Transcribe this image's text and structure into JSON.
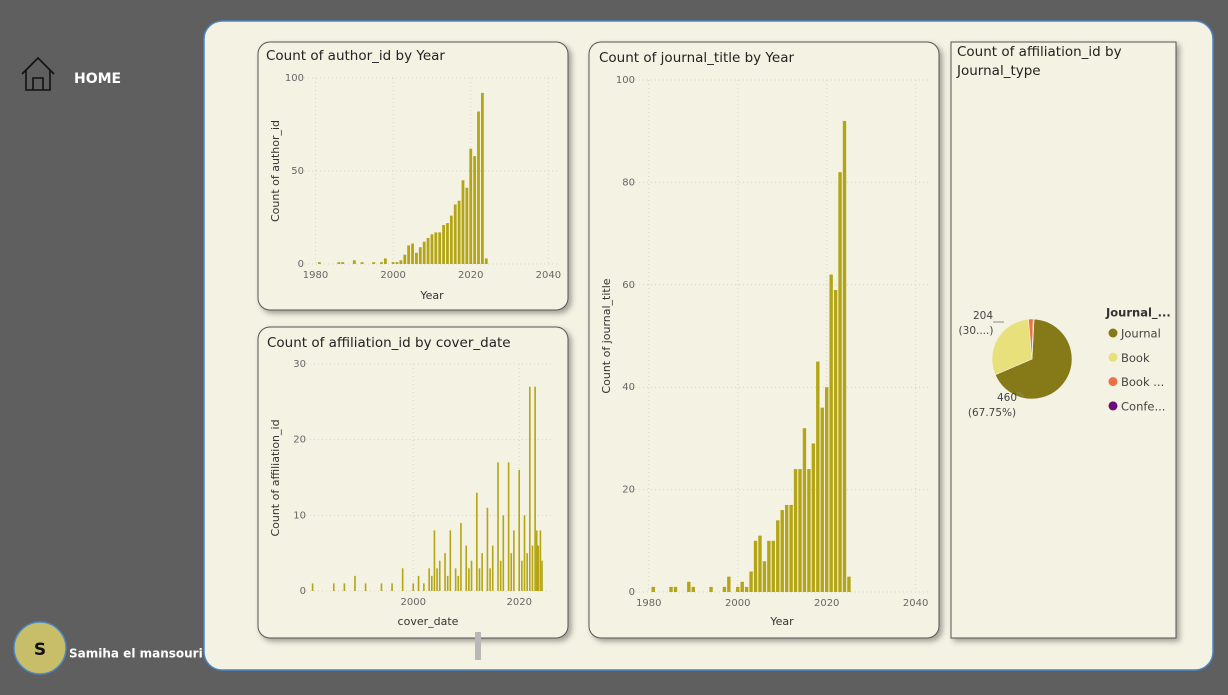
{
  "nav": {
    "home": "HOME",
    "avatar": "S",
    "user": "Samiha el mansouri"
  },
  "chart_data": [
    {
      "type": "bar",
      "title": "Count of author_id by Year",
      "x_label": "Year",
      "y_label": "Count of author_id",
      "x": [
        1981,
        1986,
        1987,
        1990,
        1992,
        1995,
        1997,
        1998,
        2000,
        2001,
        2002,
        2003,
        2004,
        2005,
        2006,
        2007,
        2008,
        2009,
        2010,
        2011,
        2012,
        2013,
        2014,
        2015,
        2016,
        2017,
        2018,
        2019,
        2020,
        2021,
        2022,
        2023,
        2024
      ],
      "values": [
        1,
        1,
        1,
        2,
        1,
        1,
        1,
        3,
        1,
        1,
        2,
        5,
        10,
        11,
        6,
        9,
        12,
        14,
        16,
        17,
        17,
        21,
        22,
        26,
        32,
        34,
        45,
        41,
        62,
        58,
        82,
        92,
        3
      ],
      "color": "#b3a516",
      "xlim": [
        1976,
        2043
      ],
      "xticks": [
        1980,
        2000,
        2020,
        2040
      ],
      "ylim": [
        0,
        100
      ],
      "yticks": [
        0,
        50,
        100
      ],
      "grid": true
    },
    {
      "type": "bar",
      "title": "Count of affiliation_id by cover_date",
      "x_label": "cover_date",
      "y_label": "Count of affiliation_id",
      "x": [
        1981,
        1985,
        1987,
        1989,
        1991,
        1994,
        1996,
        1998,
        2000,
        2001,
        2002,
        2003,
        2003.5,
        2004,
        2004.5,
        2005,
        2006,
        2006.5,
        2007,
        2008,
        2008.5,
        2009,
        2010,
        2010.5,
        2011,
        2012,
        2012.5,
        2013,
        2014,
        2014.5,
        2015,
        2016,
        2016.5,
        2017,
        2018,
        2018.5,
        2019,
        2020,
        2020.5,
        2021,
        2021.5,
        2022,
        2022.5,
        2023,
        2023.3,
        2023.6,
        2024,
        2024.3
      ],
      "values": [
        1,
        1,
        1,
        2,
        1,
        1,
        1,
        3,
        1,
        2,
        1,
        3,
        2,
        8,
        3,
        4,
        5,
        2,
        8,
        3,
        2,
        9,
        6,
        3,
        4,
        13,
        3,
        5,
        11,
        3,
        6,
        17,
        4,
        10,
        17,
        5,
        8,
        16,
        4,
        10,
        5,
        27,
        6,
        27,
        8,
        6,
        8,
        4
      ],
      "color": "#b3a516",
      "xlim": [
        1979,
        2026
      ],
      "xticks": [
        2000,
        2020
      ],
      "ylim": [
        0,
        30
      ],
      "yticks": [
        0,
        10,
        20,
        30
      ],
      "grid": true
    },
    {
      "type": "bar",
      "title": "Count of journal_title by Year",
      "x_label": "Year",
      "y_label": "Count of journal_title",
      "x": [
        1981,
        1985,
        1986,
        1989,
        1990,
        1994,
        1997,
        1998,
        2000,
        2001,
        2002,
        2003,
        2004,
        2005,
        2006,
        2007,
        2008,
        2009,
        2010,
        2011,
        2012,
        2013,
        2014,
        2015,
        2016,
        2017,
        2018,
        2019,
        2020,
        2021,
        2022,
        2023,
        2024,
        2025
      ],
      "values": [
        1,
        1,
        1,
        2,
        1,
        1,
        1,
        3,
        1,
        2,
        1,
        4,
        10,
        11,
        6,
        10,
        10,
        14,
        16,
        17,
        17,
        24,
        24,
        32,
        24,
        29,
        45,
        36,
        40,
        62,
        59,
        82,
        92,
        3
      ],
      "color": "#b3a516",
      "xlim": [
        1976,
        2043
      ],
      "xticks": [
        1980,
        2000,
        2020,
        2040
      ],
      "ylim": [
        0,
        100
      ],
      "yticks": [
        0,
        20,
        40,
        60,
        80,
        100
      ],
      "grid": true
    },
    {
      "type": "pie",
      "title_lines": [
        "Count of affiliation_id by",
        "Journal_type"
      ],
      "legend_title": "Journal_...",
      "legend": "right",
      "categories": [
        "Journal",
        "Book",
        "Book ...",
        "Confe..."
      ],
      "values": [
        460,
        204,
        13,
        2
      ],
      "value_labels": [
        "460",
        "204",
        null,
        null
      ],
      "percent_labels": [
        "(67.75%)",
        "(30....)",
        null,
        null
      ],
      "colors": [
        "#857a17",
        "#e8e07a",
        "#e8704a",
        "#6a0f7a"
      ]
    }
  ]
}
